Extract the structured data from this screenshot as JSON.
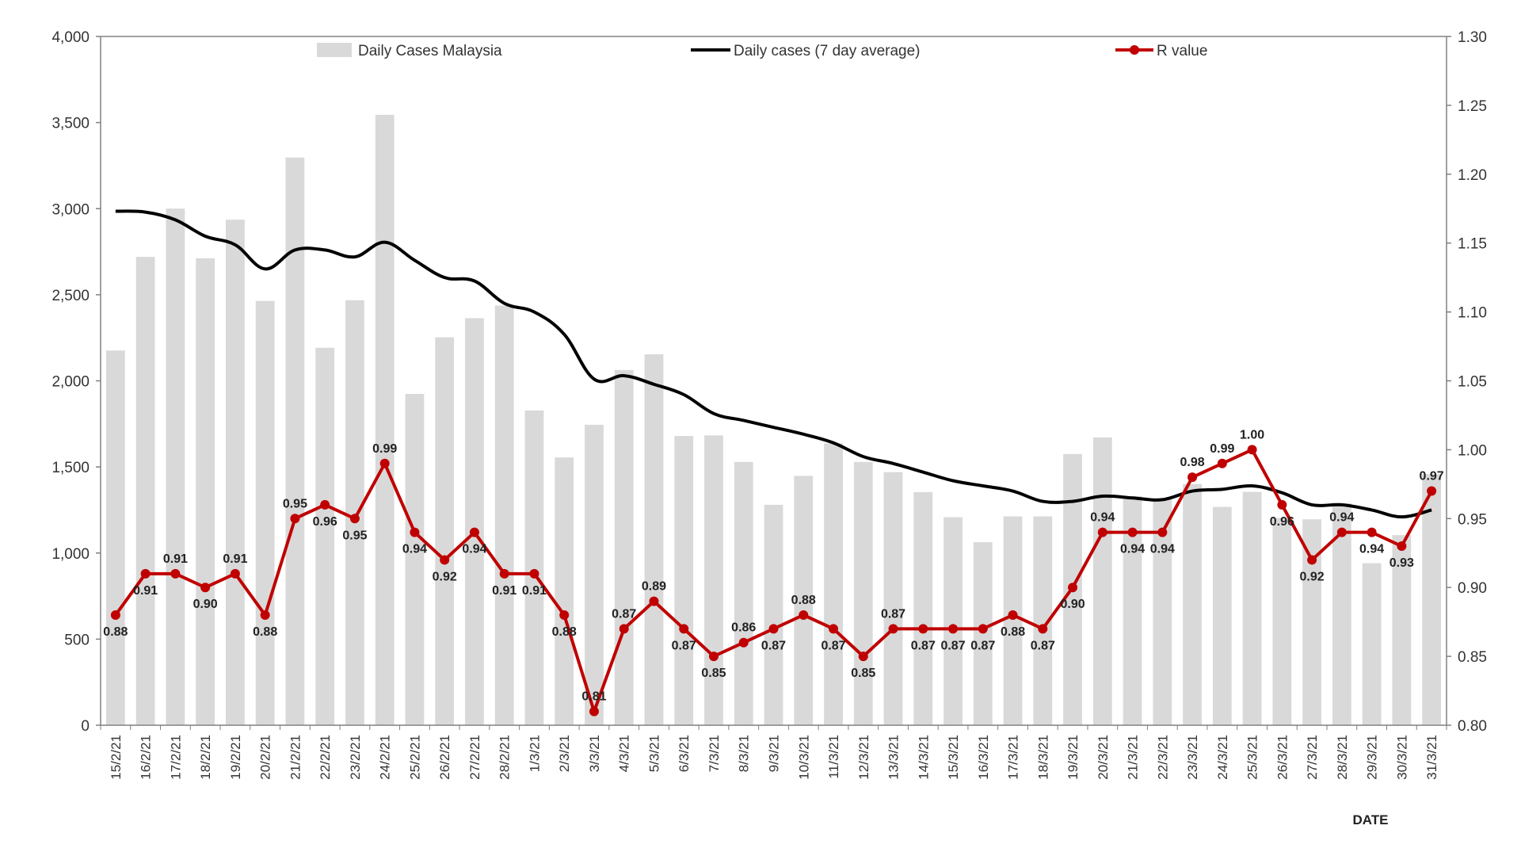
{
  "chart_data": {
    "type": "bar",
    "title": "",
    "xlabel": "DATE",
    "ylabel": "",
    "ylim": [
      0,
      4000
    ],
    "y_ticks": [
      "0",
      "500",
      "1,000",
      "1,500",
      "2,000",
      "2,500",
      "3,000",
      "3,500",
      "4,000"
    ],
    "y2lim": [
      0.8,
      1.3
    ],
    "y2_ticks": [
      "0.80",
      "0.85",
      "0.90",
      "0.95",
      "1.00",
      "1.05",
      "1.10",
      "1.15",
      "1.20",
      "1.25",
      "1.30"
    ],
    "categories": [
      "15/2/21",
      "16/2/21",
      "17/2/21",
      "18/2/21",
      "19/2/21",
      "20/2/21",
      "21/2/21",
      "22/2/21",
      "23/2/21",
      "24/2/21",
      "25/2/21",
      "26/2/21",
      "27/2/21",
      "28/2/21",
      "1/3/21",
      "2/3/21",
      "3/3/21",
      "4/3/21",
      "5/3/21",
      "6/3/21",
      "7/3/21",
      "8/3/21",
      "9/3/21",
      "10/3/21",
      "11/3/21",
      "12/3/21",
      "13/3/21",
      "14/3/21",
      "15/3/21",
      "16/3/21",
      "17/3/21",
      "18/3/21",
      "19/3/21",
      "20/3/21",
      "21/3/21",
      "22/3/21",
      "23/3/21",
      "24/3/21",
      "25/3/21",
      "26/3/21",
      "27/3/21",
      "28/3/21",
      "29/3/21",
      "30/3/21",
      "31/3/21"
    ],
    "series": [
      {
        "name": "Daily Cases Malaysia",
        "type": "bar",
        "axis": "left",
        "color": "#d9d9d9",
        "values": [
          2176,
          2720,
          3000,
          2712,
          2936,
          2464,
          3297,
          2192,
          2468,
          3545,
          1924,
          2253,
          2364,
          2437,
          1828,
          1555,
          1745,
          2063,
          2154,
          1680,
          1683,
          1529,
          1280,
          1448,
          1637,
          1529,
          1470,
          1354,
          1208,
          1063,
          1213,
          1213,
          1575,
          1671,
          1330,
          1319,
          1401,
          1268,
          1355,
          1203,
          1196,
          1290,
          941,
          1104,
          1458
        ]
      },
      {
        "name": "Daily cases (7 day average)",
        "type": "line",
        "axis": "left",
        "color": "#000000",
        "values": [
          2985,
          2980,
          2935,
          2840,
          2790,
          2650,
          2760,
          2760,
          2720,
          2805,
          2700,
          2600,
          2580,
          2450,
          2400,
          2270,
          2010,
          2030,
          1980,
          1920,
          1810,
          1770,
          1730,
          1690,
          1640,
          1560,
          1520,
          1470,
          1420,
          1390,
          1360,
          1300,
          1300,
          1330,
          1320,
          1310,
          1360,
          1370,
          1390,
          1350,
          1280,
          1280,
          1250,
          1210,
          1250
        ]
      },
      {
        "name": "R value",
        "type": "line",
        "axis": "right",
        "color": "#c00000",
        "values": [
          0.88,
          0.91,
          0.91,
          0.9,
          0.91,
          0.88,
          0.95,
          0.96,
          0.95,
          0.99,
          0.94,
          0.92,
          0.94,
          0.91,
          0.91,
          0.88,
          0.81,
          0.87,
          0.89,
          0.87,
          0.85,
          0.86,
          0.87,
          0.88,
          0.87,
          0.85,
          0.87,
          0.87,
          0.87,
          0.87,
          0.88,
          0.87,
          0.9,
          0.94,
          0.94,
          0.94,
          0.98,
          0.99,
          1.0,
          0.96,
          0.92,
          0.94,
          0.94,
          0.93,
          0.97
        ],
        "labels": [
          "0.88",
          "0.91",
          "0.91",
          "0.90",
          "0.91",
          "0.88",
          "0.95",
          "0.96",
          "0.95",
          "0.99",
          "0.94",
          "0.92",
          "0.94",
          "0.91",
          "0.91",
          "0.88",
          "0.81",
          "0.87",
          "0.89",
          "0.87",
          "0.85",
          "0.86",
          "0.87",
          "0.88",
          "0.87",
          "0.85",
          "0.87",
          "0.87",
          "0.87",
          "0.87",
          "0.88",
          "0.87",
          "0.90",
          "0.94",
          "0.94",
          "0.94",
          "0.98",
          "0.99",
          "1.00",
          "0.96",
          "0.92",
          "0.94",
          "0.94",
          "0.93",
          "0.97"
        ]
      }
    ],
    "legend": [
      "Daily Cases Malaysia",
      "Daily cases (7 day average)",
      "R value"
    ],
    "legend_position": "top",
    "grid": false
  }
}
